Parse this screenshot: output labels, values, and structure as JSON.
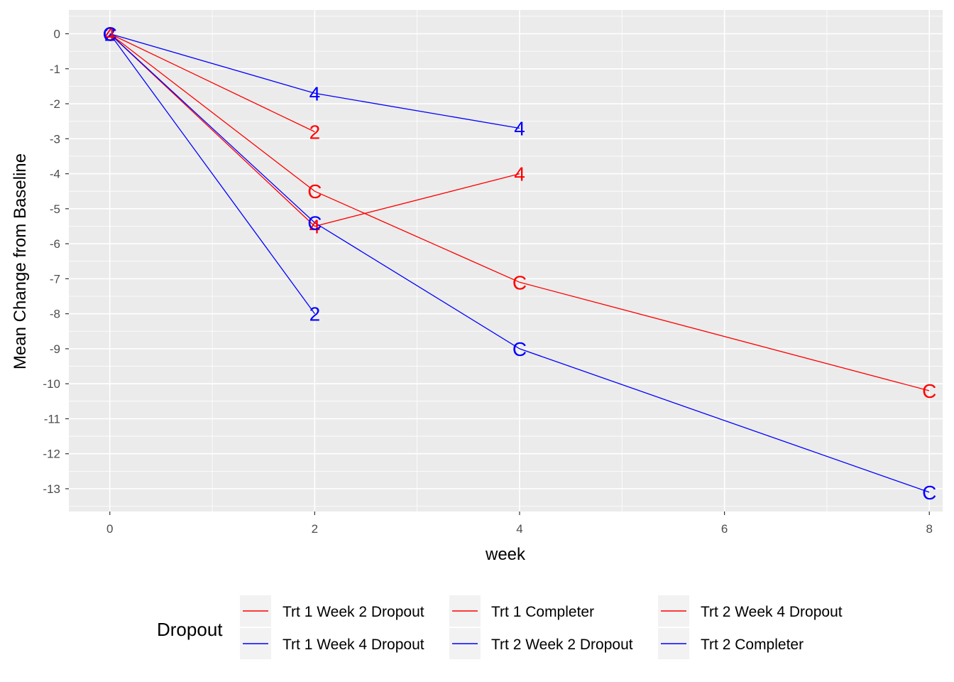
{
  "chart_data": {
    "type": "line",
    "xlabel": "week",
    "ylabel": "Mean Change from Baseline",
    "xlim": [
      -0.4,
      8.13
    ],
    "ylim": [
      -13.65,
      0.68
    ],
    "x_ticks": [
      0,
      2,
      4,
      6,
      8
    ],
    "y_ticks": [
      0,
      -1,
      -2,
      -3,
      -4,
      -5,
      -6,
      -7,
      -8,
      -9,
      -10,
      -11,
      -12,
      -13
    ],
    "grid": true,
    "background": "#ebebeb",
    "legend": {
      "title": "Dropout",
      "position": "bottom"
    },
    "series": [
      {
        "name": "Trt 1 Week 2 Dropout",
        "color": "#ff0000",
        "label": "2",
        "x": [
          0,
          2
        ],
        "y": [
          0,
          -2.8
        ]
      },
      {
        "name": "Trt 1 Week 4 Dropout",
        "color": "#0000ff",
        "label": "4",
        "x": [
          0,
          2,
          4
        ],
        "y": [
          0,
          -1.7,
          -2.7
        ]
      },
      {
        "name": "Trt 1 Completer",
        "color": "#ff0000",
        "label": "C",
        "x": [
          0,
          2,
          4,
          8
        ],
        "y": [
          0,
          -4.5,
          -7.1,
          -10.2
        ]
      },
      {
        "name": "Trt 2 Week 2 Dropout",
        "color": "#0000ff",
        "label": "2",
        "x": [
          0,
          2
        ],
        "y": [
          0,
          -8.0
        ]
      },
      {
        "name": "Trt 2 Week 4 Dropout",
        "color": "#ff0000",
        "label": "4",
        "x": [
          0,
          2,
          4
        ],
        "y": [
          0,
          -5.5,
          -4.0
        ]
      },
      {
        "name": "Trt 2 Completer",
        "color": "#0000ff",
        "label": "C",
        "x": [
          0,
          2,
          4,
          8
        ],
        "y": [
          0,
          -5.4,
          -9.0,
          -13.1
        ]
      }
    ]
  }
}
